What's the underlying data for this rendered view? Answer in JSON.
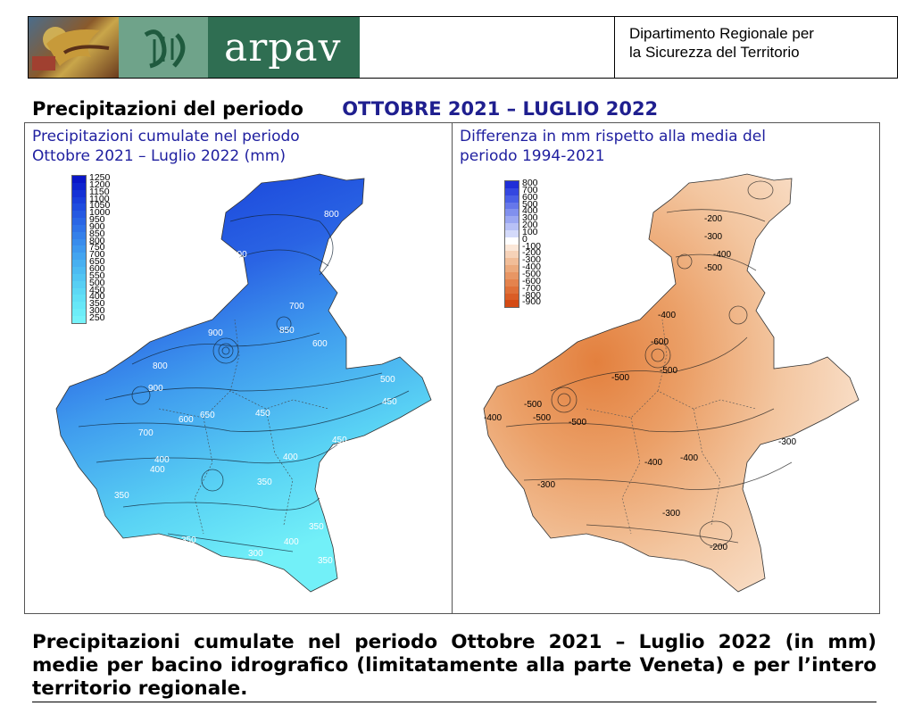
{
  "header": {
    "logo_text": "arpav",
    "department": "Dipartimento Regionale per la Sicurezza del Territorio",
    "department_line1": "Dipartimento Regionale per",
    "department_line2": "la Sicurezza del Territorio"
  },
  "title": {
    "label": "Precipitazioni del periodo",
    "range": "OTTOBRE 2021 – LUGLIO 2022"
  },
  "maps": {
    "left": {
      "title_line1": "Precipitazioni cumulate nel periodo",
      "title_line2": "Ottobre 2021 – Luglio 2022 (mm)",
      "legend": [
        "1250",
        "1200",
        "1150",
        "1100",
        "1050",
        "1000",
        "950",
        "900",
        "850",
        "800",
        "750",
        "700",
        "650",
        "600",
        "550",
        "500",
        "450",
        "400",
        "350",
        "300",
        "250"
      ],
      "legend_colors": [
        "#0a16c8",
        "#0f24cf",
        "#1532d6",
        "#1a3fdb",
        "#1f4cdf",
        "#2559e2",
        "#2a66e5",
        "#2f73e8",
        "#3480ea",
        "#398cec",
        "#3e98ee",
        "#43a4f0",
        "#48b0f1",
        "#4dbbf2",
        "#52c5f3",
        "#57cff4",
        "#5cd8f5",
        "#61e0f6",
        "#67e7f7",
        "#6dedf8",
        "#75f2f9"
      ],
      "contour_labels": [
        "800",
        "800",
        "900",
        "800",
        "850",
        "700",
        "600",
        "900",
        "700",
        "600",
        "650",
        "450",
        "500",
        "450",
        "400",
        "450",
        "350",
        "400",
        "350",
        "350",
        "400",
        "350",
        "300",
        "350",
        "400"
      ]
    },
    "right": {
      "title_line1": "Differenza in mm rispetto alla media del",
      "title_line2": "periodo 1994-2021",
      "legend": [
        "800",
        "700",
        "600",
        "500",
        "400",
        "300",
        "200",
        "100",
        "0",
        "-100",
        "-200",
        "-300",
        "-400",
        "-500",
        "-600",
        "-700",
        "-800",
        "-900"
      ],
      "legend_colors": [
        "#1f2ed8",
        "#3447e0",
        "#4a5fe6",
        "#6677ea",
        "#8190ee",
        "#9ca8f2",
        "#b8c1f6",
        "#d4dafa",
        "#ffffff",
        "#fbe7d8",
        "#f6d2b8",
        "#f1bd98",
        "#ecaa7d",
        "#e89664",
        "#e4834d",
        "#df7038",
        "#da5d25",
        "#d44a14"
      ],
      "contour_labels": [
        "-200",
        "-300",
        "-400",
        "-500",
        "-400",
        "-600",
        "-500",
        "-500",
        "-500",
        "-400",
        "-500",
        "-500",
        "-400",
        "-400",
        "-300",
        "-300",
        "-300",
        "-200"
      ]
    }
  },
  "caption": {
    "text": "Precipitazioni cumulate nel periodo Ottobre 2021 – Luglio 2022 (in mm) medie per bacino idrografico (limitatamente alla parte Veneta) e per l’intero territorio regionale."
  },
  "colors": {
    "title_blue": "#1f1f8f",
    "panel_title": "#2020a0",
    "logo_green": "#2f6e52"
  }
}
